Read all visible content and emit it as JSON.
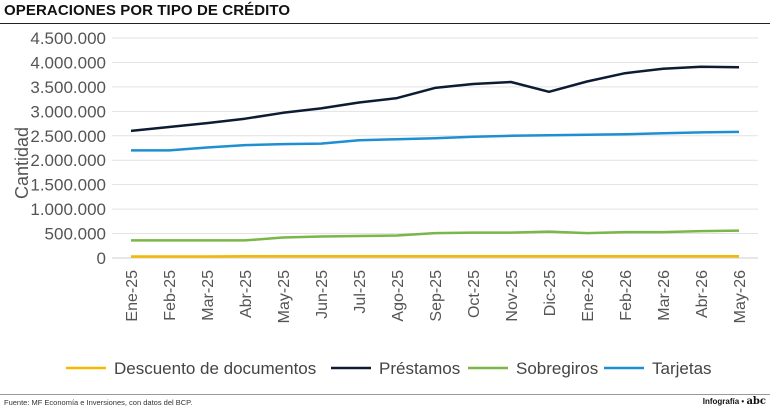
{
  "header": {
    "title": "OPERACIONES POR TIPO DE CRÉDITO"
  },
  "footer": {
    "source": "Fuente: MF Economía e Inversiones, con datos del BCP.",
    "credit_prefix": "Infografía •",
    "credit_brand": "abc"
  },
  "chart_data": {
    "type": "line",
    "title": "OPERACIONES POR TIPO DE CRÉDITO",
    "xlabel": "",
    "ylabel": "Cantidad",
    "ylim": [
      0,
      4500000
    ],
    "yticks": [
      0,
      500000,
      1000000,
      1500000,
      2000000,
      2500000,
      3000000,
      3500000,
      4000000,
      4500000
    ],
    "ytick_labels": [
      "0",
      "500.000",
      "1.000.000",
      "1.500.000",
      "2.000.000",
      "2.500.000",
      "3.000.000",
      "3.500.000",
      "4.000.000",
      "4.500.000"
    ],
    "grid": true,
    "legend_position": "bottom",
    "categories": [
      "Ene-25",
      "Feb-25",
      "Mar-25",
      "Abr-25",
      "May-25",
      "Jun-25",
      "Jul-25",
      "Ago-25",
      "Sep-25",
      "Oct-25",
      "Nov-25",
      "Dic-25",
      "Ene-26",
      "Feb-26",
      "Mar-26",
      "Abr-26",
      "May-26"
    ],
    "series": [
      {
        "name": "Descuento de documentos",
        "color": "#f5b800",
        "values": [
          30000,
          30000,
          30000,
          35000,
          35000,
          35000,
          35000,
          35000,
          35000,
          35000,
          35000,
          35000,
          35000,
          35000,
          35000,
          35000,
          35000
        ]
      },
      {
        "name": "Préstamos",
        "color": "#0d1b33",
        "values": [
          2600000,
          2680000,
          2760000,
          2850000,
          2970000,
          3060000,
          3180000,
          3270000,
          3480000,
          3560000,
          3600000,
          3400000,
          3610000,
          3780000,
          3870000,
          3910000,
          3900000
        ]
      },
      {
        "name": "Sobregiros",
        "color": "#7ab648",
        "values": [
          360000,
          360000,
          360000,
          360000,
          420000,
          440000,
          450000,
          460000,
          510000,
          520000,
          520000,
          540000,
          510000,
          530000,
          530000,
          550000,
          560000
        ]
      },
      {
        "name": "Tarjetas",
        "color": "#1f8fd1",
        "values": [
          2200000,
          2200000,
          2260000,
          2310000,
          2330000,
          2340000,
          2410000,
          2430000,
          2450000,
          2480000,
          2500000,
          2510000,
          2520000,
          2530000,
          2550000,
          2570000,
          2580000
        ]
      }
    ]
  }
}
